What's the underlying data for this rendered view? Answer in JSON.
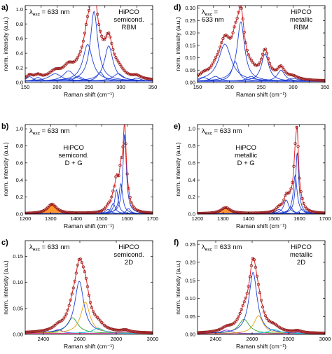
{
  "chart_data": [
    {
      "id": "a",
      "type": "line",
      "panel_label": "a)",
      "excitation_text": [
        "λ",
        "exc",
        " = 633 nm"
      ],
      "annotation": [
        "HiPCO",
        "semicond.",
        "RBM"
      ],
      "xlabel": "Raman shift (cm⁻¹)",
      "ylabel": "norm. intensity (a.u.)",
      "xlim": [
        150,
        350
      ],
      "ylim": [
        0,
        1.05
      ],
      "xticks": [
        150,
        175,
        200,
        225,
        250,
        275,
        300,
        325,
        350
      ],
      "xtick_labels": [
        "150",
        "",
        "200",
        "",
        "250",
        "",
        "300",
        "",
        "350"
      ],
      "yticks": [
        0,
        0.2,
        0.4,
        0.6,
        0.8,
        1.0
      ],
      "ytick_labels": [
        "0.0",
        "0.2",
        "0.4",
        "0.6",
        "0.8",
        "1.0"
      ],
      "baseline": 0.02,
      "peaks": [
        {
          "pos": 157,
          "amp": 0.06,
          "w": 6
        },
        {
          "pos": 170,
          "amp": 0.05,
          "w": 6
        },
        {
          "pos": 197,
          "amp": 0.1,
          "w": 12
        },
        {
          "pos": 218,
          "amp": 0.14,
          "w": 10
        },
        {
          "pos": 234,
          "amp": 0.06,
          "w": 8
        },
        {
          "pos": 248,
          "amp": 0.5,
          "w": 9
        },
        {
          "pos": 258,
          "amp": 0.95,
          "w": 7
        },
        {
          "pos": 268,
          "amp": 0.12,
          "w": 6
        },
        {
          "pos": 281,
          "amp": 0.48,
          "w": 8
        },
        {
          "pos": 296,
          "amp": 0.1,
          "w": 10
        },
        {
          "pos": 325,
          "amp": 0.04,
          "w": 8
        }
      ],
      "fill_first_peak": false,
      "colors": {
        "components": "#1f3fd6",
        "fit": "#e02020",
        "data": "#8b1010"
      }
    },
    {
      "id": "d",
      "type": "line",
      "panel_label": "d)",
      "excitation_text": [
        "λ",
        "exc",
        " ="
      ],
      "excitation_line2": "633 nm",
      "annotation": [
        "HiPCO",
        "metallic",
        "RBM"
      ],
      "xlabel": "Raman shift (cm⁻¹)",
      "ylabel": "norm. intensity (a.u.)",
      "xlim": [
        150,
        350
      ],
      "ylim": [
        0,
        0.31
      ],
      "xticks": [
        150,
        175,
        200,
        225,
        250,
        275,
        300,
        325,
        350
      ],
      "xtick_labels": [
        "150",
        "",
        "200",
        "",
        "250",
        "",
        "300",
        "",
        "350"
      ],
      "yticks": [
        0,
        0.05,
        0.1,
        0.15,
        0.2,
        0.25,
        0.3
      ],
      "ytick_labels": [
        "0.00",
        "0.05",
        "0.10",
        "0.15",
        "0.20",
        "0.25",
        "0.30"
      ],
      "baseline": 0.005,
      "peaks": [
        {
          "pos": 160,
          "amp": 0.015,
          "w": 8
        },
        {
          "pos": 178,
          "amp": 0.02,
          "w": 8
        },
        {
          "pos": 193,
          "amp": 0.15,
          "w": 12
        },
        {
          "pos": 209,
          "amp": 0.08,
          "w": 6
        },
        {
          "pos": 218,
          "amp": 0.24,
          "w": 7
        },
        {
          "pos": 234,
          "amp": 0.02,
          "w": 8
        },
        {
          "pos": 256,
          "amp": 0.11,
          "w": 7
        },
        {
          "pos": 281,
          "amp": 0.045,
          "w": 7
        },
        {
          "pos": 300,
          "amp": 0.012,
          "w": 10
        }
      ],
      "fill_first_peak": false,
      "colors": {
        "components": "#1f3fd6",
        "fit": "#e02020",
        "data": "#8b1010"
      }
    },
    {
      "id": "b",
      "type": "line",
      "panel_label": "b)",
      "excitation_text": [
        "λ",
        "exc",
        " = 633 nm"
      ],
      "annotation": [
        "HiPCO",
        "semicond.",
        "D + G"
      ],
      "xlabel": "Raman shift (cm⁻¹)",
      "ylabel": "norm. intensity (a.u.)",
      "xlim": [
        1200,
        1700
      ],
      "ylim": [
        0,
        1.05
      ],
      "xticks": [
        1200,
        1300,
        1400,
        1500,
        1600,
        1700
      ],
      "xtick_labels": [
        "1200",
        "1300",
        "1400",
        "1500",
        "1600",
        "1700"
      ],
      "yticks": [
        0,
        0.2,
        0.4,
        0.6,
        0.8,
        1.0
      ],
      "ytick_labels": [
        "0.0",
        "0.2",
        "0.4",
        "0.6",
        "0.8",
        "1.0"
      ],
      "baseline": 0.005,
      "peaks": [
        {
          "pos": 1305,
          "amp": 0.11,
          "w": 22
        },
        {
          "pos": 1525,
          "amp": 0.05,
          "w": 12
        },
        {
          "pos": 1545,
          "amp": 0.12,
          "w": 10
        },
        {
          "pos": 1558,
          "amp": 0.28,
          "w": 8
        },
        {
          "pos": 1575,
          "amp": 0.35,
          "w": 9
        },
        {
          "pos": 1590,
          "amp": 0.93,
          "w": 8
        },
        {
          "pos": 1605,
          "amp": 0.06,
          "w": 10
        }
      ],
      "fill_first_peak": true,
      "colors": {
        "components": "#1f3fd6",
        "fit": "#e02020",
        "data": "#8b1010",
        "d_band": "#ff8c1a"
      }
    },
    {
      "id": "e",
      "type": "line",
      "panel_label": "e)",
      "excitation_text": [
        "λ",
        "exc",
        " = 633 nm"
      ],
      "annotation": [
        "HiPCO",
        "metallic",
        "D + G"
      ],
      "xlabel": "Raman shift (cm⁻¹)",
      "ylabel": "norm. intensity (a.u.)",
      "xlim": [
        1200,
        1700
      ],
      "ylim": [
        0,
        1.05
      ],
      "xticks": [
        1200,
        1300,
        1400,
        1500,
        1600,
        1700
      ],
      "xtick_labels": [
        "1200",
        "1300",
        "1400",
        "1500",
        "1600",
        "1700"
      ],
      "yticks": [
        0,
        0.2,
        0.4,
        0.6,
        0.8,
        1.0
      ],
      "ytick_labels": [
        "0.0",
        "0.2",
        "0.4",
        "0.6",
        "0.8",
        "1.0"
      ],
      "baseline": 0.005,
      "peaks": [
        {
          "pos": 1310,
          "amp": 0.07,
          "w": 22
        },
        {
          "pos": 1520,
          "amp": 0.05,
          "w": 14
        },
        {
          "pos": 1548,
          "amp": 0.16,
          "w": 12
        },
        {
          "pos": 1565,
          "amp": 0.08,
          "w": 10
        },
        {
          "pos": 1583,
          "amp": 0.45,
          "w": 9
        },
        {
          "pos": 1591,
          "amp": 0.72,
          "w": 7
        },
        {
          "pos": 1608,
          "amp": 0.05,
          "w": 10
        }
      ],
      "fill_first_peak": true,
      "colors": {
        "components": "#1f3fd6",
        "fit": "#e02020",
        "data": "#8b1010",
        "d_band": "#ff8c1a"
      }
    },
    {
      "id": "c",
      "type": "line",
      "panel_label": "c)",
      "excitation_text": [
        "λ",
        "exc",
        " = 633 nm"
      ],
      "annotation": [
        "HiPCO",
        "semicond.",
        "2D"
      ],
      "xlabel": "Raman shift (cm⁻¹)",
      "ylabel": "norm. intensity (a.u.)",
      "xlim": [
        2300,
        3000
      ],
      "ylim": [
        0,
        0.18
      ],
      "xticks": [
        2400,
        2600,
        2800,
        3000
      ],
      "xtick_labels": [
        "2400",
        "2600",
        "2800",
        "3000"
      ],
      "yticks": [
        0,
        0.05,
        0.1,
        0.15
      ],
      "ytick_labels": [
        "0.00",
        "0.05",
        "0.10",
        "0.15"
      ],
      "baseline": 0.002,
      "peaks": [
        {
          "pos": 2480,
          "amp": 0.007,
          "w": 30,
          "color": "#8a2be2"
        },
        {
          "pos": 2560,
          "amp": 0.03,
          "w": 35,
          "color": "#2ca02c"
        },
        {
          "pos": 2597,
          "amp": 0.1,
          "w": 30,
          "color": "#1f3fd6"
        },
        {
          "pos": 2630,
          "amp": 0.06,
          "w": 30,
          "color": "#e8a317"
        },
        {
          "pos": 2700,
          "amp": 0.01,
          "w": 35,
          "color": "#00bcd4"
        },
        {
          "pos": 2850,
          "amp": 0.004,
          "w": 25,
          "color": "#d43f8d"
        }
      ],
      "fill_first_peak": false,
      "colors": {
        "components": "#1f3fd6",
        "fit": "#e02020",
        "data": "#8b1010"
      }
    },
    {
      "id": "f",
      "type": "line",
      "panel_label": "f)",
      "excitation_text": [
        "λ",
        "exc",
        " = 633 nm"
      ],
      "annotation": [
        "HiPCO",
        "metallic",
        "2D"
      ],
      "xlabel": "Raman shift (cm⁻¹)",
      "ylabel": "norm. intensity (a.u.)",
      "xlim": [
        2300,
        3000
      ],
      "ylim": [
        0,
        0.26
      ],
      "xticks": [
        2400,
        2600,
        2800,
        3000
      ],
      "xtick_labels": [
        "2400",
        "2600",
        "2800",
        "3000"
      ],
      "yticks": [
        0,
        0.05,
        0.1,
        0.15,
        0.2,
        0.25
      ],
      "ytick_labels": [
        "0.00",
        "0.05",
        "0.10",
        "0.15",
        "0.20",
        "0.25"
      ],
      "baseline": 0.002,
      "peaks": [
        {
          "pos": 2460,
          "amp": 0.01,
          "w": 35,
          "color": "#8a2be2"
        },
        {
          "pos": 2555,
          "amp": 0.04,
          "w": 35,
          "color": "#2ca02c"
        },
        {
          "pos": 2605,
          "amp": 0.17,
          "w": 27,
          "color": "#1f3fd6"
        },
        {
          "pos": 2635,
          "amp": 0.05,
          "w": 30,
          "color": "#e8a317"
        },
        {
          "pos": 2720,
          "amp": 0.012,
          "w": 35,
          "color": "#00bcd4"
        },
        {
          "pos": 2850,
          "amp": 0.005,
          "w": 25,
          "color": "#d43f8d"
        }
      ],
      "fill_first_peak": false,
      "colors": {
        "components": "#1f3fd6",
        "fit": "#e02020",
        "data": "#8b1010"
      }
    }
  ]
}
